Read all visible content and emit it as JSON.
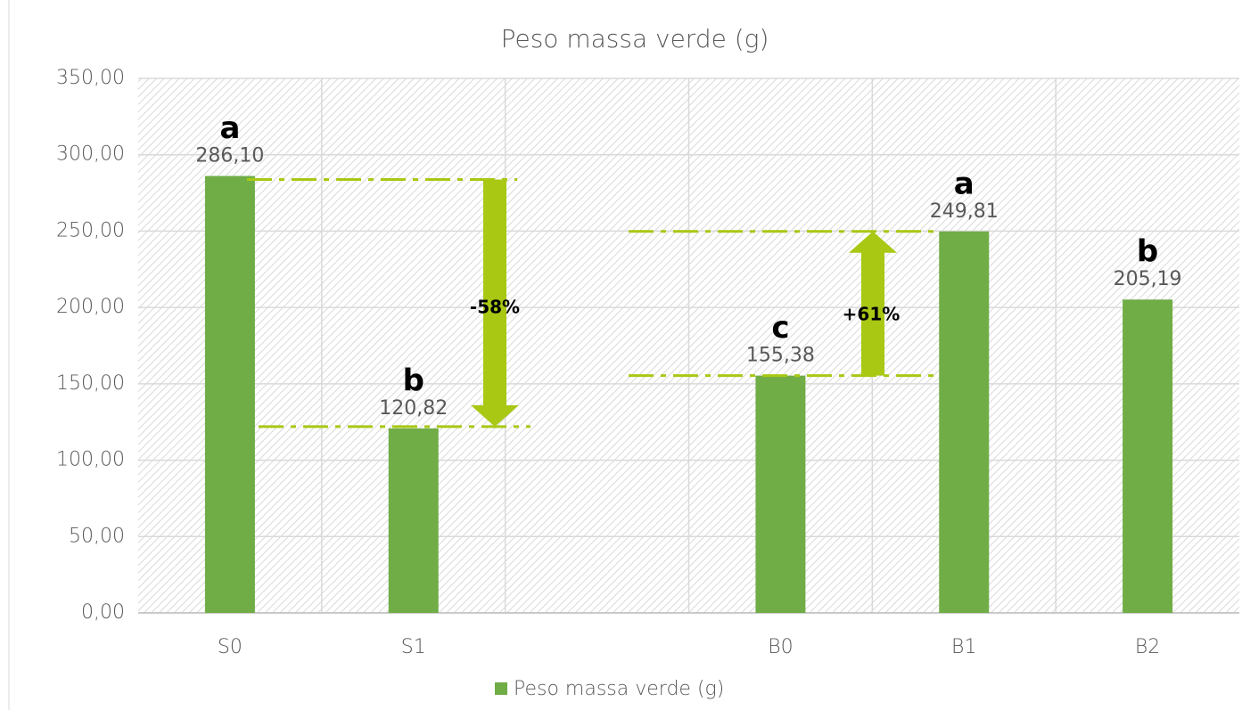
{
  "chart_data": {
    "type": "bar",
    "title": "Peso massa verde (g)",
    "categories": [
      "S0",
      "S1",
      null,
      "B0",
      "B1",
      "B2"
    ],
    "series": [
      {
        "name": "Peso massa verde (g)",
        "color": "#70ad47",
        "values": [
          286.1,
          120.82,
          null,
          155.38,
          249.81,
          205.19
        ],
        "value_labels": [
          "286,10",
          "120,82",
          null,
          "155,38",
          "249,81",
          "205,19"
        ]
      }
    ],
    "letters": [
      "a",
      "b",
      null,
      "c",
      "a",
      "b"
    ],
    "annotations": [
      "-58%",
      "+61%"
    ],
    "ylim": [
      0,
      350
    ],
    "yticks": [
      {
        "value": 0,
        "label": "0,00"
      },
      {
        "value": 50,
        "label": "50,00"
      },
      {
        "value": 100,
        "label": "100,00"
      },
      {
        "value": 150,
        "label": "150,00"
      },
      {
        "value": 200,
        "label": "200,00"
      },
      {
        "value": 250,
        "label": "250,00"
      },
      {
        "value": 300,
        "label": "300,00"
      },
      {
        "value": 350,
        "label": "350,00"
      }
    ],
    "grid": true,
    "legend": "bottom"
  }
}
